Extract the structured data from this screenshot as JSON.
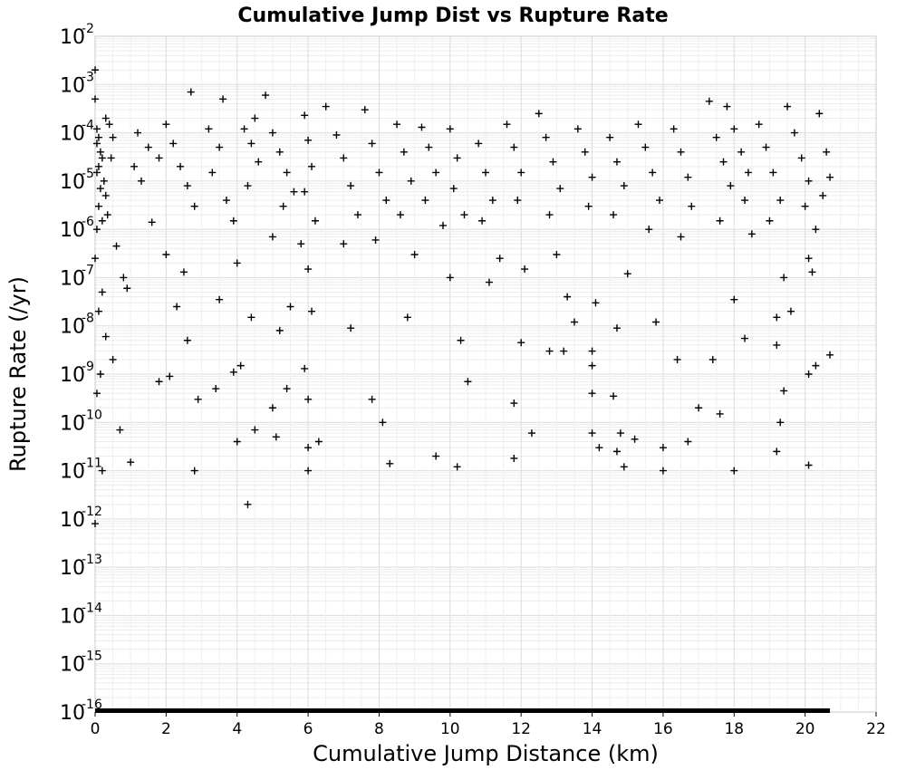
{
  "chart_data": {
    "type": "scatter",
    "title": "Cumulative Jump Dist vs Rupture Rate",
    "xlabel": "Cumulative Jump Distance (km)",
    "ylabel": "Rupture Rate (/yr)",
    "xlim": [
      0,
      22
    ],
    "ylim": [
      1e-16,
      0.01
    ],
    "yscale": "log",
    "grid": true,
    "marker": "plus",
    "x_ticks": [
      "0",
      "2",
      "4",
      "6",
      "8",
      "10",
      "12",
      "14",
      "16",
      "18",
      "20",
      "22"
    ],
    "y_ticks": [
      {
        "base": "10",
        "exp": "-2"
      },
      {
        "base": "10",
        "exp": "-3"
      },
      {
        "base": "10",
        "exp": "-4"
      },
      {
        "base": "10",
        "exp": "-5"
      },
      {
        "base": "10",
        "exp": "-6"
      },
      {
        "base": "10",
        "exp": "-7"
      },
      {
        "base": "10",
        "exp": "-8"
      },
      {
        "base": "10",
        "exp": "-9"
      },
      {
        "base": "10",
        "exp": "-10"
      },
      {
        "base": "10",
        "exp": "-11"
      },
      {
        "base": "10",
        "exp": "-12"
      },
      {
        "base": "10",
        "exp": "-13"
      },
      {
        "base": "10",
        "exp": "-14"
      },
      {
        "base": "10",
        "exp": "-15"
      },
      {
        "base": "10",
        "exp": "-16"
      }
    ],
    "floor_band": {
      "x_range": [
        0,
        20.7
      ],
      "y": 1e-16
    },
    "points": [
      [
        0.0,
        0.002
      ],
      [
        0.0,
        0.0005
      ],
      [
        0.05,
        0.00012
      ],
      [
        0.1,
        8e-05
      ],
      [
        0.05,
        6e-05
      ],
      [
        0.15,
        4e-05
      ],
      [
        0.2,
        3e-05
      ],
      [
        0.1,
        2e-05
      ],
      [
        0.05,
        1.5e-05
      ],
      [
        0.25,
        1e-05
      ],
      [
        0.15,
        7e-06
      ],
      [
        0.3,
        5e-06
      ],
      [
        0.1,
        3e-06
      ],
      [
        0.35,
        2e-06
      ],
      [
        0.2,
        1.5e-06
      ],
      [
        0.05,
        1e-06
      ],
      [
        0.4,
        0.00015
      ],
      [
        0.5,
        8e-05
      ],
      [
        0.3,
        0.0002
      ],
      [
        0.45,
        3e-05
      ],
      [
        0.0,
        2.5e-07
      ],
      [
        0.2,
        5e-08
      ],
      [
        0.1,
        2e-08
      ],
      [
        0.3,
        6e-09
      ],
      [
        0.15,
        1e-09
      ],
      [
        0.05,
        4e-10
      ],
      [
        0.2,
        1e-11
      ],
      [
        0.0,
        8e-13
      ],
      [
        0.6,
        4.5e-07
      ],
      [
        0.9,
        6e-08
      ],
      [
        0.5,
        2e-09
      ],
      [
        0.7,
        7e-11
      ],
      [
        1.0,
        1.5e-11
      ],
      [
        0.8,
        1e-07
      ],
      [
        1.2,
        0.0001
      ],
      [
        1.5,
        5e-05
      ],
      [
        1.1,
        2e-05
      ],
      [
        1.3,
        1e-05
      ],
      [
        1.6,
        1.4e-06
      ],
      [
        1.8,
        3e-05
      ],
      [
        2.0,
        0.00015
      ],
      [
        2.2,
        6e-05
      ],
      [
        2.4,
        2e-05
      ],
      [
        2.6,
        8e-06
      ],
      [
        2.8,
        3e-06
      ],
      [
        2.7,
        0.0007
      ],
      [
        2.5,
        1.3e-07
      ],
      [
        2.3,
        2.5e-08
      ],
      [
        2.6,
        5e-09
      ],
      [
        2.8,
        1e-11
      ],
      [
        2.0,
        3e-07
      ],
      [
        1.8,
        7e-10
      ],
      [
        2.1,
        9e-10
      ],
      [
        2.9,
        3e-10
      ],
      [
        3.2,
        0.00012
      ],
      [
        3.5,
        5e-05
      ],
      [
        3.3,
        1.5e-05
      ],
      [
        3.7,
        4e-06
      ],
      [
        3.9,
        1.5e-06
      ],
      [
        3.6,
        0.0005
      ],
      [
        3.5,
        3.5e-08
      ],
      [
        3.9,
        1.1e-09
      ],
      [
        4.0,
        4e-11
      ],
      [
        3.4,
        5e-10
      ],
      [
        4.2,
        0.00012
      ],
      [
        4.4,
        6e-05
      ],
      [
        4.6,
        2.5e-05
      ],
      [
        4.3,
        8e-06
      ],
      [
        4.5,
        0.0002
      ],
      [
        4.8,
        0.0006
      ],
      [
        4.1,
        1.5e-09
      ],
      [
        4.4,
        1.5e-08
      ],
      [
        4.3,
        2e-12
      ],
      [
        4.5,
        7e-11
      ],
      [
        4.0,
        2e-07
      ],
      [
        5.0,
        0.0001
      ],
      [
        5.2,
        4e-05
      ],
      [
        5.4,
        1.5e-05
      ],
      [
        5.6,
        6e-06
      ],
      [
        5.3,
        3e-06
      ],
      [
        5.0,
        7e-07
      ],
      [
        5.5,
        2.5e-08
      ],
      [
        5.2,
        8e-09
      ],
      [
        5.4,
        5e-10
      ],
      [
        5.0,
        2e-10
      ],
      [
        5.1,
        5e-11
      ],
      [
        5.8,
        5e-07
      ],
      [
        5.9,
        0.00023
      ],
      [
        6.0,
        7e-05
      ],
      [
        6.1,
        2e-05
      ],
      [
        5.9,
        6e-06
      ],
      [
        6.2,
        1.5e-06
      ],
      [
        6.0,
        1.5e-07
      ],
      [
        6.1,
        2e-08
      ],
      [
        5.9,
        1.3e-09
      ],
      [
        6.0,
        3e-10
      ],
      [
        6.0,
        3e-11
      ],
      [
        6.0,
        1e-11
      ],
      [
        6.3,
        4e-11
      ],
      [
        6.5,
        0.00035
      ],
      [
        6.8,
        9e-05
      ],
      [
        7.0,
        3e-05
      ],
      [
        7.2,
        8e-06
      ],
      [
        7.4,
        2e-06
      ],
      [
        7.0,
        5e-07
      ],
      [
        7.2,
        9e-09
      ],
      [
        7.6,
        0.0003
      ],
      [
        7.8,
        6e-05
      ],
      [
        8.0,
        1.5e-05
      ],
      [
        8.2,
        4e-06
      ],
      [
        7.9,
        6e-07
      ],
      [
        7.8,
        3e-10
      ],
      [
        8.1,
        1e-10
      ],
      [
        8.3,
        1.4e-11
      ],
      [
        8.5,
        0.00015
      ],
      [
        8.7,
        4e-05
      ],
      [
        8.9,
        1e-05
      ],
      [
        8.6,
        2e-06
      ],
      [
        9.0,
        3e-07
      ],
      [
        8.8,
        1.5e-08
      ],
      [
        9.2,
        0.00013
      ],
      [
        9.4,
        5e-05
      ],
      [
        9.6,
        1.5e-05
      ],
      [
        9.3,
        4e-06
      ],
      [
        9.8,
        1.2e-06
      ],
      [
        9.6,
        2e-11
      ],
      [
        10.0,
        0.00012
      ],
      [
        10.2,
        3e-05
      ],
      [
        10.1,
        7e-06
      ],
      [
        10.4,
        2e-06
      ],
      [
        10.0,
        1e-07
      ],
      [
        10.3,
        5e-09
      ],
      [
        10.5,
        7e-10
      ],
      [
        10.2,
        1.2e-11
      ],
      [
        10.8,
        6e-05
      ],
      [
        11.0,
        1.5e-05
      ],
      [
        11.2,
        4e-06
      ],
      [
        10.9,
        1.5e-06
      ],
      [
        11.4,
        2.5e-07
      ],
      [
        11.1,
        8e-08
      ],
      [
        11.6,
        0.00015
      ],
      [
        11.8,
        5e-05
      ],
      [
        12.0,
        1.5e-05
      ],
      [
        11.9,
        4e-06
      ],
      [
        12.1,
        1.5e-07
      ],
      [
        12.0,
        4.5e-09
      ],
      [
        11.8,
        2.5e-10
      ],
      [
        12.3,
        6e-11
      ],
      [
        11.8,
        1.8e-11
      ],
      [
        12.5,
        0.00025
      ],
      [
        12.7,
        8e-05
      ],
      [
        12.9,
        2.5e-05
      ],
      [
        13.1,
        7e-06
      ],
      [
        12.8,
        2e-06
      ],
      [
        13.0,
        3e-07
      ],
      [
        13.3,
        4e-08
      ],
      [
        13.5,
        1.2e-08
      ],
      [
        12.8,
        3e-09
      ],
      [
        13.2,
        3e-09
      ],
      [
        13.6,
        0.00012
      ],
      [
        13.8,
        4e-05
      ],
      [
        14.0,
        1.2e-05
      ],
      [
        13.9,
        3e-06
      ],
      [
        14.1,
        3e-08
      ],
      [
        14.0,
        3e-09
      ],
      [
        14.0,
        1.5e-09
      ],
      [
        14.0,
        4e-10
      ],
      [
        14.0,
        6e-11
      ],
      [
        14.2,
        3e-11
      ],
      [
        14.5,
        8e-05
      ],
      [
        14.7,
        2.5e-05
      ],
      [
        14.9,
        8e-06
      ],
      [
        14.6,
        2e-06
      ],
      [
        15.0,
        1.2e-07
      ],
      [
        14.7,
        9e-09
      ],
      [
        14.6,
        3.5e-10
      ],
      [
        14.8,
        6e-11
      ],
      [
        14.7,
        2.5e-11
      ],
      [
        15.2,
        4.5e-11
      ],
      [
        14.9,
        1.2e-11
      ],
      [
        15.3,
        0.00015
      ],
      [
        15.5,
        5e-05
      ],
      [
        15.7,
        1.5e-05
      ],
      [
        15.9,
        4e-06
      ],
      [
        15.6,
        1e-06
      ],
      [
        15.8,
        1.2e-08
      ],
      [
        16.0,
        3e-11
      ],
      [
        16.0,
        1e-11
      ],
      [
        16.3,
        0.00012
      ],
      [
        16.5,
        4e-05
      ],
      [
        16.7,
        1.2e-05
      ],
      [
        16.8,
        3e-06
      ],
      [
        16.5,
        7e-07
      ],
      [
        16.4,
        2e-09
      ],
      [
        16.7,
        4e-11
      ],
      [
        17.0,
        2e-10
      ],
      [
        17.3,
        0.00045
      ],
      [
        17.5,
        8e-05
      ],
      [
        17.7,
        2.5e-05
      ],
      [
        17.9,
        8e-06
      ],
      [
        17.6,
        1.5e-06
      ],
      [
        17.4,
        2e-09
      ],
      [
        17.6,
        1.5e-10
      ],
      [
        17.8,
        0.00035
      ],
      [
        18.0,
        0.00012
      ],
      [
        18.2,
        4e-05
      ],
      [
        18.4,
        1.5e-05
      ],
      [
        18.3,
        4e-06
      ],
      [
        18.5,
        8e-07
      ],
      [
        18.0,
        3.5e-08
      ],
      [
        18.3,
        5.5e-09
      ],
      [
        18.0,
        1e-11
      ],
      [
        18.7,
        0.00015
      ],
      [
        18.9,
        5e-05
      ],
      [
        19.1,
        1.5e-05
      ],
      [
        19.3,
        4e-06
      ],
      [
        19.0,
        1.5e-06
      ],
      [
        19.4,
        1e-07
      ],
      [
        19.2,
        1.5e-08
      ],
      [
        19.3,
        1e-10
      ],
      [
        19.2,
        2.5e-11
      ],
      [
        19.5,
        0.00035
      ],
      [
        19.7,
        0.0001
      ],
      [
        19.9,
        3e-05
      ],
      [
        20.1,
        1e-05
      ],
      [
        20.0,
        3e-06
      ],
      [
        20.3,
        1e-06
      ],
      [
        20.1,
        2.5e-07
      ],
      [
        20.2,
        1.3e-07
      ],
      [
        20.3,
        1.5e-09
      ],
      [
        20.1,
        1e-09
      ],
      [
        20.1,
        1.3e-11
      ],
      [
        20.4,
        0.00025
      ],
      [
        20.6,
        4e-05
      ],
      [
        20.7,
        1.2e-05
      ],
      [
        20.5,
        5e-06
      ],
      [
        20.7,
        2.5e-09
      ],
      [
        19.6,
        2e-08
      ],
      [
        19.2,
        4e-09
      ],
      [
        19.4,
        4.5e-10
      ]
    ]
  }
}
